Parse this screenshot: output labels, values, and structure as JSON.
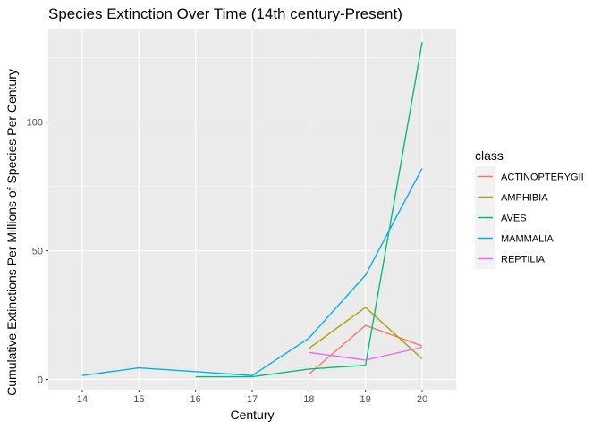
{
  "chart_data": {
    "type": "line",
    "title": "Species Extinction Over Time (14th century-Present)",
    "xlabel": "Century",
    "ylabel": "Cumulative Extinctions Per Millions of Species Per Century",
    "xlim": [
      13.4,
      20.6
    ],
    "ylim": [
      -4,
      136
    ],
    "x_ticks": [
      14,
      15,
      16,
      17,
      18,
      19,
      20
    ],
    "y_ticks": [
      0,
      50,
      100
    ],
    "grid": true,
    "legend": {
      "title": "class",
      "position": "right"
    },
    "series": [
      {
        "name": "ACTINOPTERYGII",
        "color": "#F8766D",
        "x": [
          18,
          19,
          20
        ],
        "y": [
          2,
          21,
          13
        ]
      },
      {
        "name": "AMPHIBIA",
        "color": "#A3A500",
        "x": [
          18,
          19,
          20
        ],
        "y": [
          12,
          28,
          8
        ]
      },
      {
        "name": "AVES",
        "color": "#00BF7D",
        "x": [
          16,
          17,
          18,
          19,
          20
        ],
        "y": [
          1,
          1,
          4,
          5.5,
          131
        ]
      },
      {
        "name": "MAMMALIA",
        "color": "#00B0F6",
        "x": [
          14,
          15,
          16,
          17,
          18,
          19,
          20
        ],
        "y": [
          1.5,
          4.5,
          3,
          1.5,
          16,
          40.5,
          82
        ]
      },
      {
        "name": "REPTILIA",
        "color": "#E76BF3",
        "x": [
          18,
          19,
          20
        ],
        "y": [
          10.5,
          7.5,
          12.5
        ]
      }
    ]
  }
}
